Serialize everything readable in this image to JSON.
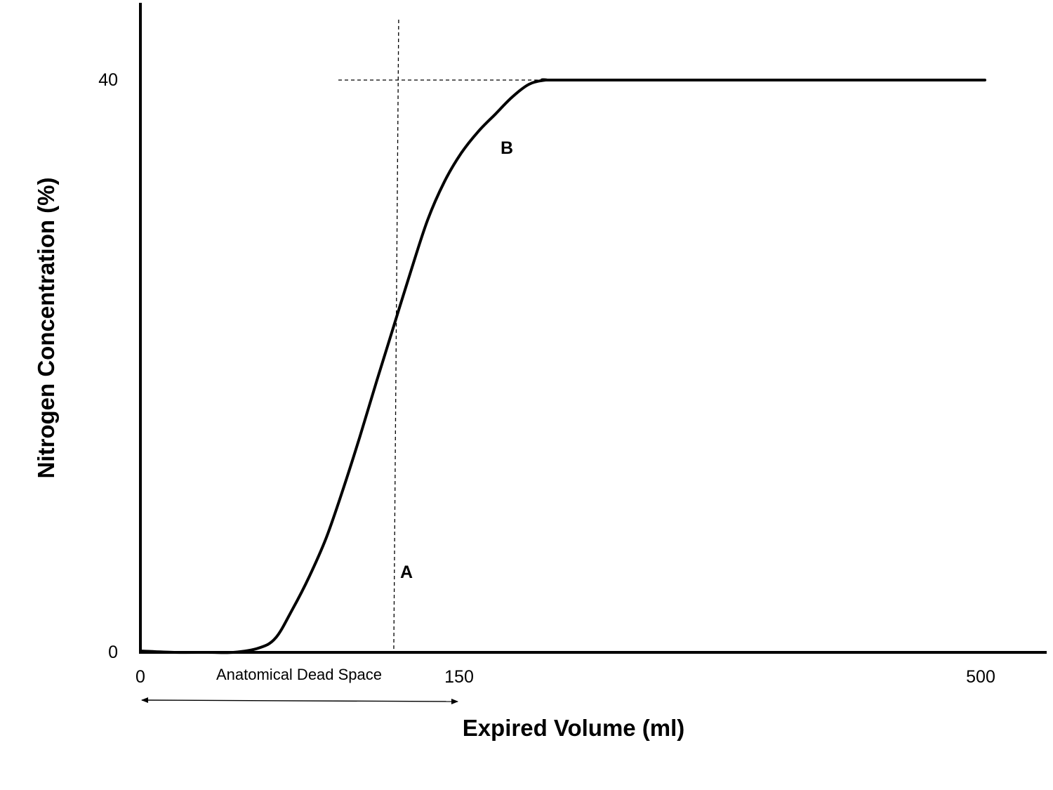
{
  "chart_data": {
    "type": "line",
    "title": "",
    "xlabel": "Expired Volume (ml)",
    "ylabel": "Nitrogen Concentration (%)",
    "x_ticks": [
      "0",
      "150",
      "500"
    ],
    "y_ticks": [
      "0",
      "40"
    ],
    "xlim": [
      0,
      500
    ],
    "ylim": [
      0,
      40
    ],
    "grid": false,
    "series": [
      {
        "x": [
          0,
          20,
          40,
          55,
          70,
          80,
          90,
          100,
          110,
          120,
          130,
          140,
          150,
          160,
          170,
          180,
          190,
          200,
          210,
          220,
          230,
          240,
          250,
          375,
          500
        ],
        "y": [
          0.1,
          0.0,
          0.0,
          0.0,
          0.3,
          1.0,
          3.0,
          5.3,
          8.0,
          11.4,
          15.1,
          19.0,
          22.8,
          26.6,
          30.2,
          32.9,
          34.9,
          36.4,
          37.6,
          38.8,
          39.7,
          40.0,
          40.0,
          40.0,
          40.0
        ]
      }
    ],
    "annotations": {
      "region_a": "A",
      "region_b": "B",
      "dead_space": "Anatomical Dead Space"
    },
    "reference_lines": {
      "vertical_x": 150,
      "horizontal_y": 40
    }
  }
}
